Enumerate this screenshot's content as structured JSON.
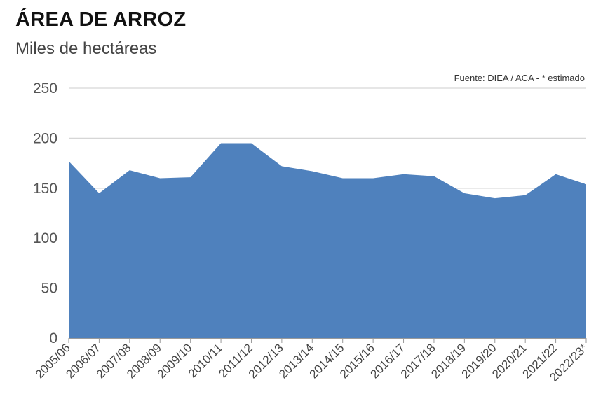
{
  "header": {
    "title": "ÁREA DE ARROZ",
    "subtitle": "Miles de hectáreas",
    "source": "Fuente: DIEA / ACA - * estimado"
  },
  "chart_data": {
    "type": "area",
    "title": "ÁREA DE ARROZ",
    "subtitle": "Miles de hectáreas",
    "xlabel": "",
    "ylabel": "",
    "categories": [
      "2005/06",
      "2006/07",
      "2007/08",
      "2008/09",
      "2009/10",
      "2010/11",
      "2011/12",
      "2012/13",
      "2013/14",
      "2014/15",
      "2015/16",
      "2016/17",
      "2017/18",
      "2018/19",
      "2019/20",
      "2020/21",
      "2021/22",
      "2022/23*"
    ],
    "values": [
      177,
      145,
      168,
      160,
      161,
      195,
      195,
      172,
      167,
      160,
      160,
      164,
      162,
      145,
      140,
      143,
      164,
      154
    ],
    "ylim": [
      0,
      250
    ],
    "yticks": [
      0,
      50,
      100,
      150,
      200,
      250
    ],
    "grid": true,
    "legend": "none",
    "fill_color": "#4f81bd"
  }
}
